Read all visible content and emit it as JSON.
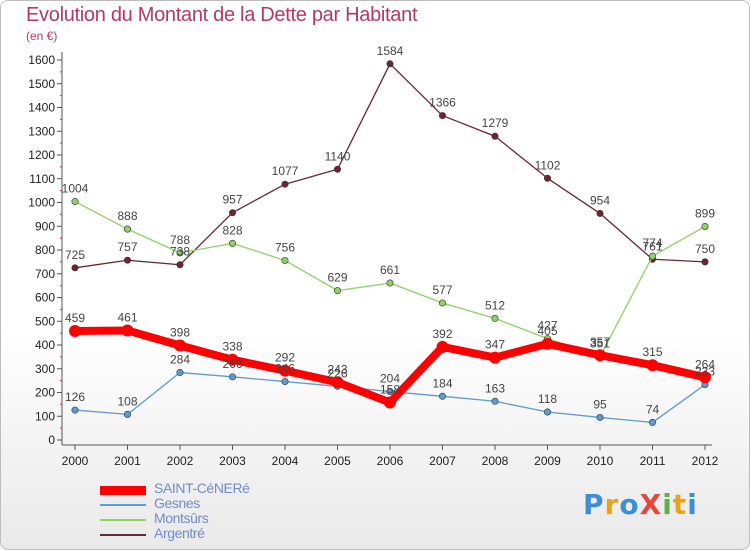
{
  "title": "Evolution du Montant de la Dette par Habitant",
  "subtitle": "(en €)",
  "logo": {
    "text": "ProXiti",
    "colors": [
      "#3a8fd6",
      "#e8a317",
      "#3a8fd6",
      "#e8453c",
      "#5bb04a",
      "#e8a317",
      "#3a8fd6"
    ]
  },
  "chart_data": {
    "type": "line",
    "x": [
      "2000",
      "2001",
      "2002",
      "2003",
      "2004",
      "2005",
      "2006",
      "2007",
      "2008",
      "2009",
      "2010",
      "2011",
      "2012"
    ],
    "ylim": [
      0,
      1650
    ],
    "yticks": [
      0,
      100,
      200,
      300,
      400,
      500,
      600,
      700,
      800,
      900,
      1000,
      1100,
      1200,
      1300,
      1400,
      1500,
      1600
    ],
    "grid": false,
    "legend_position": "bottom-left",
    "series": [
      {
        "name": "Argentré",
        "color": "#6b2630",
        "width": 1.3,
        "values": [
          725,
          757,
          738,
          957,
          1077,
          1140,
          1584,
          1366,
          1279,
          1102,
          954,
          761,
          750
        ],
        "labels": [
          "725",
          "757",
          "738",
          "957",
          "1077",
          "1140",
          "1584",
          "1366",
          "1279",
          "1102",
          "954",
          "761",
          "750"
        ]
      },
      {
        "name": "Montsûrs",
        "color": "#8fd166",
        "width": 1.3,
        "values": [
          1004,
          888,
          788,
          828,
          756,
          629,
          661,
          577,
          512,
          427,
          351,
          774,
          899
        ],
        "labels": [
          "1004",
          "888",
          "788",
          "828",
          "756",
          "629",
          "661",
          "577",
          "512",
          "427",
          "351",
          "774",
          "899"
        ]
      },
      {
        "name": "Gesnes",
        "color": "#5e9ad4",
        "width": 1.3,
        "values": [
          126,
          108,
          284,
          266,
          246,
          226,
          204,
          184,
          163,
          118,
          95,
          74,
          233
        ],
        "labels": [
          "126",
          "108",
          "284",
          "266",
          "246",
          "226",
          "204",
          "184",
          "163",
          "118",
          "95",
          "74",
          "233"
        ]
      },
      {
        "name": "SAINT-CéNERé",
        "color": "#ff0000",
        "width": 8,
        "values": [
          459,
          461,
          398,
          338,
          292,
          243,
          158,
          392,
          347,
          405,
          357,
          315,
          264
        ],
        "labels": [
          "459",
          "461",
          "398",
          "338",
          "292",
          "243",
          "158",
          "392",
          "347",
          "405",
          "357",
          "315",
          "264"
        ]
      }
    ],
    "legend": [
      "SAINT-CéNERé",
      "Gesnes",
      "Montsûrs",
      "Argentré"
    ]
  }
}
